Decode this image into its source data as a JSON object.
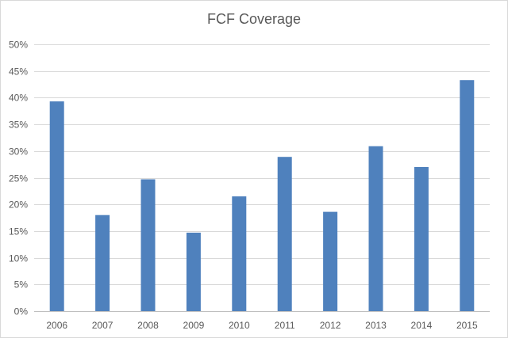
{
  "chart_data": {
    "type": "bar",
    "title": "FCF Coverage",
    "xlabel": "",
    "ylabel": "",
    "categories": [
      "2006",
      "2007",
      "2008",
      "2009",
      "2010",
      "2011",
      "2012",
      "2013",
      "2014",
      "2015"
    ],
    "values": [
      39.3,
      18.0,
      24.7,
      14.7,
      21.5,
      28.9,
      18.6,
      30.9,
      27.0,
      43.3
    ],
    "ylim": [
      0,
      50
    ],
    "yticks": [
      "0%",
      "5%",
      "10%",
      "15%",
      "20%",
      "25%",
      "30%",
      "35%",
      "40%",
      "45%",
      "50%"
    ],
    "grid": true,
    "legend": "none",
    "bar_color": "#4f81bd",
    "grid_color": "#d9d9d9"
  }
}
